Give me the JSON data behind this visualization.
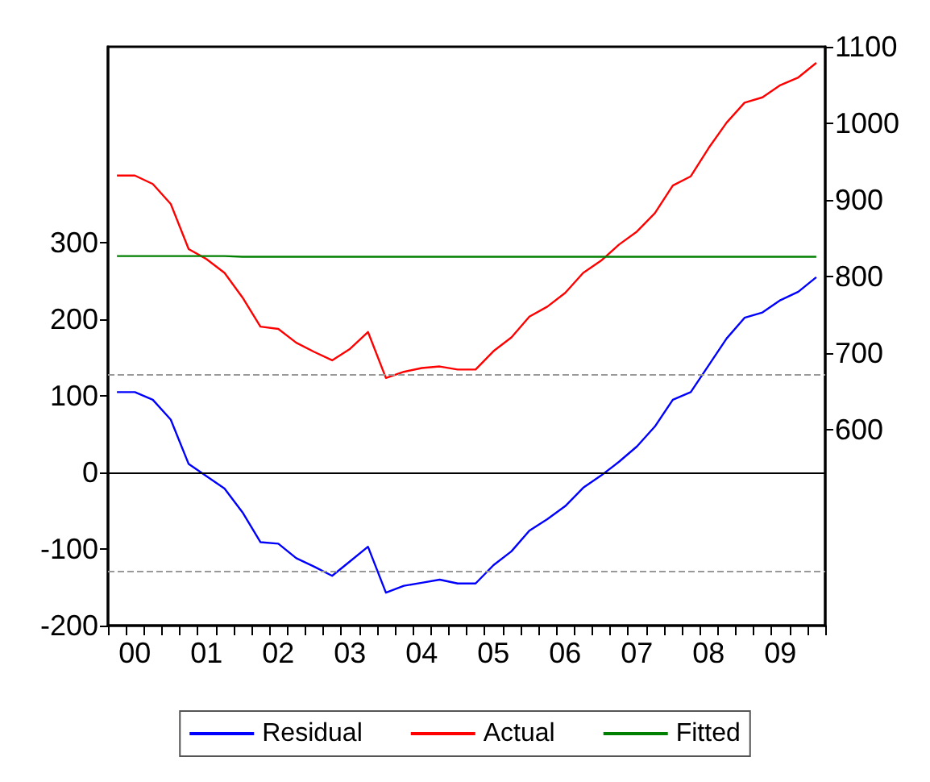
{
  "chart_data": {
    "type": "line",
    "categories": [
      null,
      "00",
      null,
      null,
      null,
      "01",
      null,
      null,
      null,
      "02",
      null,
      null,
      null,
      "03",
      null,
      null,
      null,
      "04",
      null,
      null,
      null,
      "05",
      null,
      null,
      null,
      "06",
      null,
      null,
      null,
      "07",
      null,
      null,
      null,
      "08",
      null,
      null,
      null,
      "09",
      null,
      null
    ],
    "series": [
      {
        "name": "Residual",
        "color": "#0000ff",
        "values": [
          105,
          105,
          95,
          69,
          11,
          -5,
          -21,
          -52,
          -91,
          -93,
          -112,
          -123,
          -135,
          -116,
          -97,
          -157,
          -148,
          -144,
          -140,
          -145,
          -145,
          -121,
          -103,
          -76,
          -61,
          -44,
          -20,
          -4,
          14,
          34,
          60,
          95,
          105,
          140,
          175,
          202,
          209,
          225,
          236,
          255
        ]
      },
      {
        "name": "Actual",
        "color": "#ff0000",
        "axis": "y2",
        "values": [
          932,
          932,
          921,
          895,
          836,
          823,
          805,
          773,
          735,
          732,
          714,
          702,
          691,
          706,
          728,
          668,
          676,
          681,
          683,
          679,
          679,
          703,
          721,
          748,
          761,
          779,
          805,
          821,
          842,
          859,
          883,
          919,
          931,
          968,
          1001,
          1027,
          1034,
          1050,
          1060,
          1079
        ]
      },
      {
        "name": "Fitted",
        "color": "#008000",
        "axis": "y2",
        "values": [
          827,
          827,
          827,
          827,
          827,
          827,
          827,
          826,
          826,
          826,
          826,
          826,
          826,
          826,
          826,
          826,
          826,
          826,
          826,
          826,
          826,
          826,
          826,
          826,
          826,
          826,
          826,
          826,
          826,
          826,
          826,
          826,
          826,
          826,
          826,
          826,
          826,
          826,
          826,
          826
        ]
      }
    ],
    "ylim": [
      -200,
      556
    ],
    "yticks": [
      -200,
      -100,
      0,
      100,
      200,
      300
    ],
    "y2lim": [
      345,
      1100
    ],
    "y2ticks": [
      600,
      700,
      800,
      900,
      1000,
      1100
    ],
    "ref_lines": [
      {
        "axis": "y",
        "value": 0,
        "color": "#000000",
        "line_style": "solid"
      },
      {
        "axis": "y",
        "value": 128,
        "color": "#999999",
        "line_style": "dashed"
      },
      {
        "axis": "y",
        "value": -128,
        "color": "#999999",
        "line_style": "dashed"
      }
    ],
    "grid": false,
    "legend": "bottom",
    "marker": "none",
    "line_style": "solid"
  }
}
